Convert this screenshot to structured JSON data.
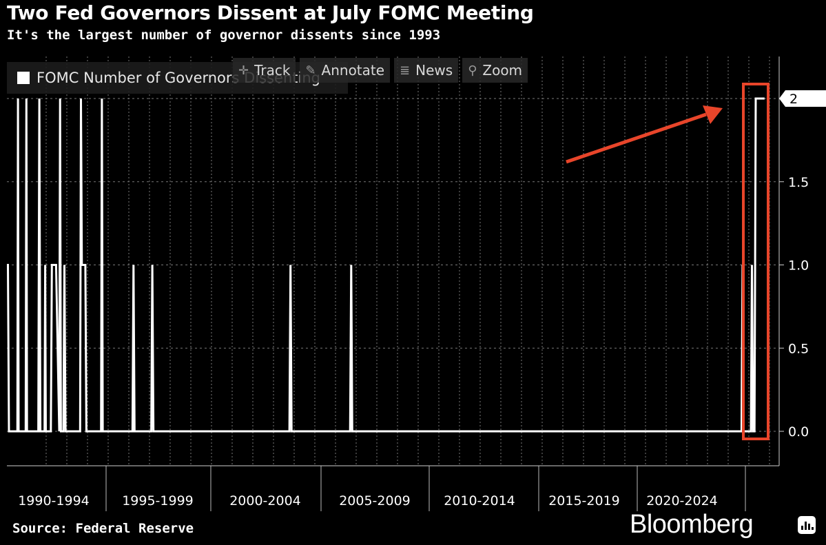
{
  "header": {
    "title": "Two Fed Governors Dissent at July FOMC Meeting",
    "subtitle": "It's the largest number of governor dissents since 1993"
  },
  "footer": {
    "source": "Source: Federal Reserve",
    "brand": "Bloomberg"
  },
  "toolbar": {
    "items": [
      {
        "label": "Track",
        "icon": "crosshair-icon"
      },
      {
        "label": "Annotate",
        "icon": "pencil-icon"
      },
      {
        "label": "News",
        "icon": "news-icon"
      },
      {
        "label": "Zoom",
        "icon": "magnifier-icon"
      }
    ]
  },
  "colors": {
    "background": "#000000",
    "series": "#ffffff",
    "highlight": "#e8452a"
  },
  "chart_data": {
    "type": "line",
    "title": "Two Fed Governors Dissent at July FOMC Meeting",
    "subtitle": "It's the largest number of governor dissents since 1993",
    "xlabel": "",
    "ylabel": "",
    "xlim": [
      1989.8,
      2026.6
    ],
    "ylim": [
      0,
      2.2
    ],
    "y_ticks": [
      "0.0",
      "0.5",
      "1.0",
      "1.5",
      "2"
    ],
    "x_tick_labels": [
      "1990-1994",
      "1995-1999",
      "2000-2004",
      "2005-2009",
      "2010-2014",
      "2015-2019",
      "2020-2024"
    ],
    "grid": true,
    "legend": "top-left",
    "last_value_label": "2",
    "series": [
      {
        "name": "FOMC Number of Governors Dissenting",
        "x": [
          1989.8,
          1989.85,
          1989.9,
          1990.3,
          1990.33,
          1990.36,
          1990.7,
          1990.73,
          1990.76,
          1991.3,
          1991.35,
          1991.4,
          1991.45,
          1991.6,
          1991.63,
          1991.66,
          1991.9,
          1991.95,
          1992.0,
          1992.05,
          1992.15,
          1992.3,
          1992.34,
          1992.38,
          1992.43,
          1992.5,
          1992.55,
          1992.6,
          1992.65,
          1993.3,
          1993.34,
          1993.38,
          1993.5,
          1993.55,
          1993.6,
          1993.85,
          1993.9,
          1994.3,
          1994.34,
          1994.38,
          1994.45,
          1995.8,
          1995.85,
          1995.9,
          1996.7,
          1996.75,
          1996.8,
          2003.3,
          2003.35,
          2003.4,
          2006.2,
          2006.25,
          2006.3,
          2024.9,
          2024.95,
          2025.0,
          2025.35,
          2025.4,
          2025.45,
          2025.52,
          2025.58,
          2026.0
        ],
        "y": [
          1,
          1,
          0,
          0,
          2,
          0,
          0,
          2,
          0,
          0,
          2,
          0,
          0,
          0,
          1,
          0,
          0,
          1,
          1,
          1,
          1,
          0,
          2,
          0,
          0,
          0,
          1,
          0,
          0,
          0,
          2,
          1,
          1,
          1,
          0,
          0,
          0,
          0,
          2,
          0,
          0,
          0,
          1,
          0,
          0,
          1,
          0,
          0,
          1,
          0,
          0,
          1,
          0,
          0,
          1,
          0,
          0,
          1,
          0,
          0,
          2,
          2
        ]
      }
    ]
  }
}
